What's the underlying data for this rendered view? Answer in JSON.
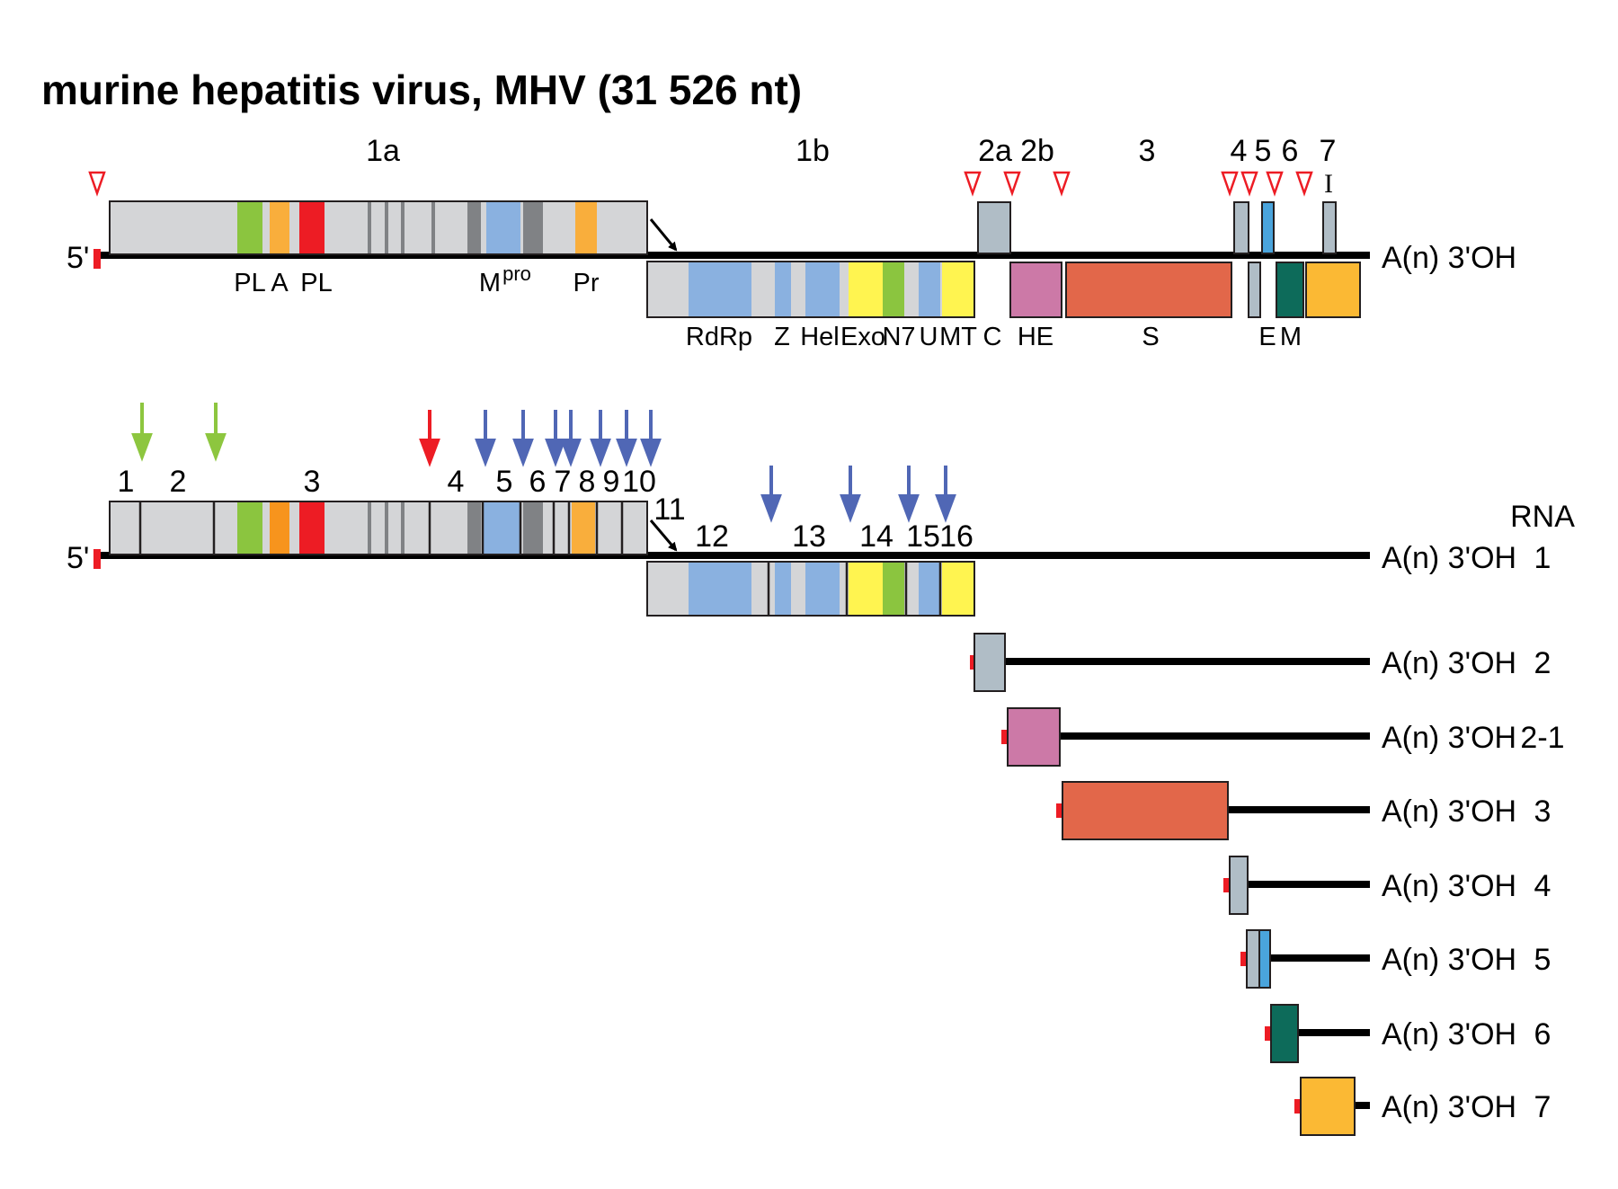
{
  "title": "murine hepatitis virus, MHV (31 526 nt)",
  "colors": {
    "gray": "#d4d5d7",
    "bluegray": "#b0bdc6",
    "lightblue": "#8ab1e0",
    "green": "#8bc53f",
    "orange": "#f9ae3c",
    "red": "#ed1c24",
    "darkgray": "#808285",
    "yellow": "#fff450",
    "pink": "#cc79a7",
    "salmon": "#e2674a",
    "teal": "#0d6b5a",
    "gold": "#fbb934",
    "brightblue": "#4aa4dc",
    "arrow_green": "#8dc63f",
    "arrow_red": "#ed1c24",
    "arrow_blue": "#5067b5"
  },
  "genome": {
    "five_prime": "5'",
    "three_prime": "A(n) 3'OH",
    "orf_labels": [
      "1a",
      "1b",
      "2a",
      "2b",
      "3",
      "4",
      "5",
      "6",
      "7",
      "I"
    ],
    "domain_labels_top": [
      "PL",
      "A",
      "PL",
      "M",
      "pro",
      "Pr"
    ],
    "domain_labels_bottom": [
      "RdRp",
      "Z",
      "Hel",
      "Exo",
      "N7",
      "U",
      "MT",
      "C",
      "HE",
      "S",
      "E",
      "M"
    ]
  },
  "polyprotein": {
    "five_prime": "5'",
    "three_prime": "A(n) 3'OH",
    "nsp_labels": [
      "1",
      "2",
      "3",
      "4",
      "5",
      "6",
      "7",
      "8",
      "9",
      "10",
      "11",
      "12",
      "13",
      "14",
      "15",
      "16"
    ]
  },
  "rnas": {
    "header": "RNA",
    "items": [
      {
        "label": "A(n) 3'OH",
        "id": "1"
      },
      {
        "label": "A(n) 3'OH",
        "id": "2"
      },
      {
        "label": "A(n) 3'OH",
        "id": "2-1"
      },
      {
        "label": "A(n) 3'OH",
        "id": "3"
      },
      {
        "label": "A(n) 3'OH",
        "id": "4"
      },
      {
        "label": "A(n) 3'OH",
        "id": "5"
      },
      {
        "label": "A(n) 3'OH",
        "id": "6"
      },
      {
        "label": "A(n) 3'OH",
        "id": "7"
      }
    ]
  }
}
